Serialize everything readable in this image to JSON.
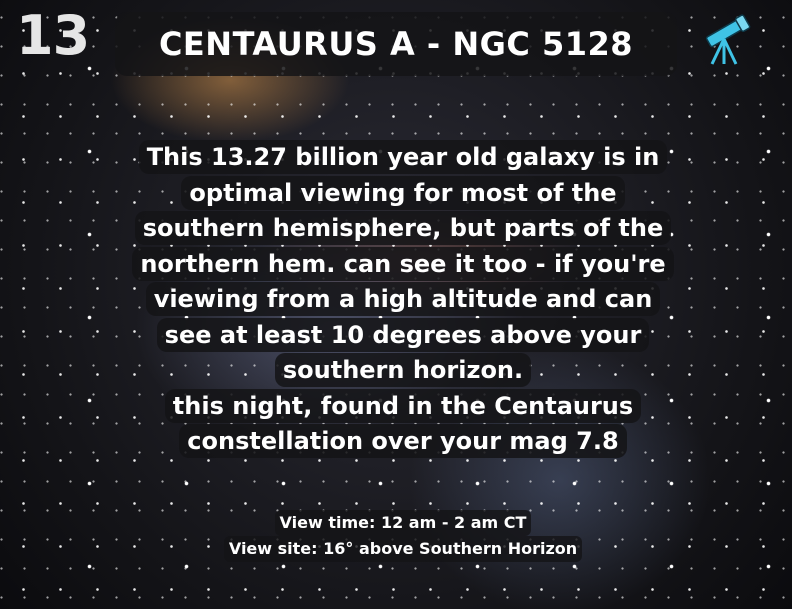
{
  "header": {
    "number": "13",
    "title": "CENTAURUS A - NGC 5128"
  },
  "description": {
    "lines": [
      "This 13.27 billion year old galaxy is in",
      "optimal viewing for most of the",
      "southern hemisphere, but parts of the",
      "northern hem. can see it too - if you're",
      "viewing from a high altitude and can",
      "see at least 10 degrees above your",
      "southern horizon.",
      "this night, found in the Centaurus",
      "constellation over your mag 7.8"
    ]
  },
  "footer": {
    "lines": [
      "View time: 12 am - 2 am CT",
      "View site: 16° above Southern Horizon"
    ]
  }
}
